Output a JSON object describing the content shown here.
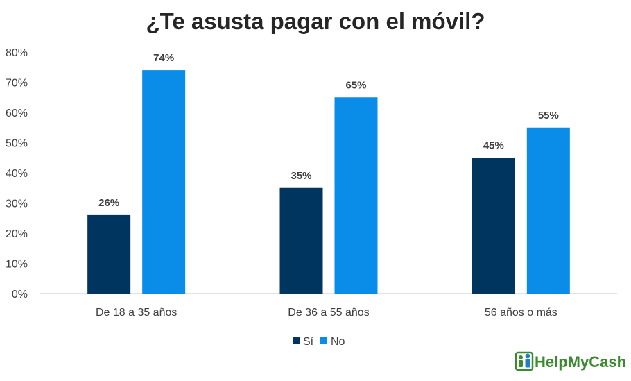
{
  "colors": {
    "si": "#00355f",
    "no": "#0a8de8",
    "axis": "#d9d9d9",
    "brand": "#3a8a2f"
  },
  "brand": {
    "name": "HelpMyCash",
    "icon": "people-icon"
  },
  "chart_data": {
    "type": "bar",
    "title": "¿Te asusta pagar con el móvil?",
    "xlabel": "",
    "ylabel": "",
    "categories": [
      "De 18 a 35 años",
      "De 36 a 55 años",
      "56 años o más"
    ],
    "series": [
      {
        "name": "Sí",
        "values": [
          26,
          35,
          45
        ],
        "labels": [
          "26%",
          "35%",
          "45%"
        ]
      },
      {
        "name": "No",
        "values": [
          74,
          65,
          55
        ],
        "labels": [
          "74%",
          "65%",
          "55%"
        ]
      }
    ],
    "ylim": [
      0,
      80
    ],
    "yticks": [
      {
        "value": 0,
        "label": "0%"
      },
      {
        "value": 10,
        "label": "10%"
      },
      {
        "value": 20,
        "label": "20%"
      },
      {
        "value": 30,
        "label": "30%"
      },
      {
        "value": 40,
        "label": "40%"
      },
      {
        "value": 50,
        "label": "50%"
      },
      {
        "value": 60,
        "label": "60%"
      },
      {
        "value": 70,
        "label": "70%"
      },
      {
        "value": 80,
        "label": "80%"
      }
    ],
    "grid": false,
    "legend": "bottom-center"
  }
}
